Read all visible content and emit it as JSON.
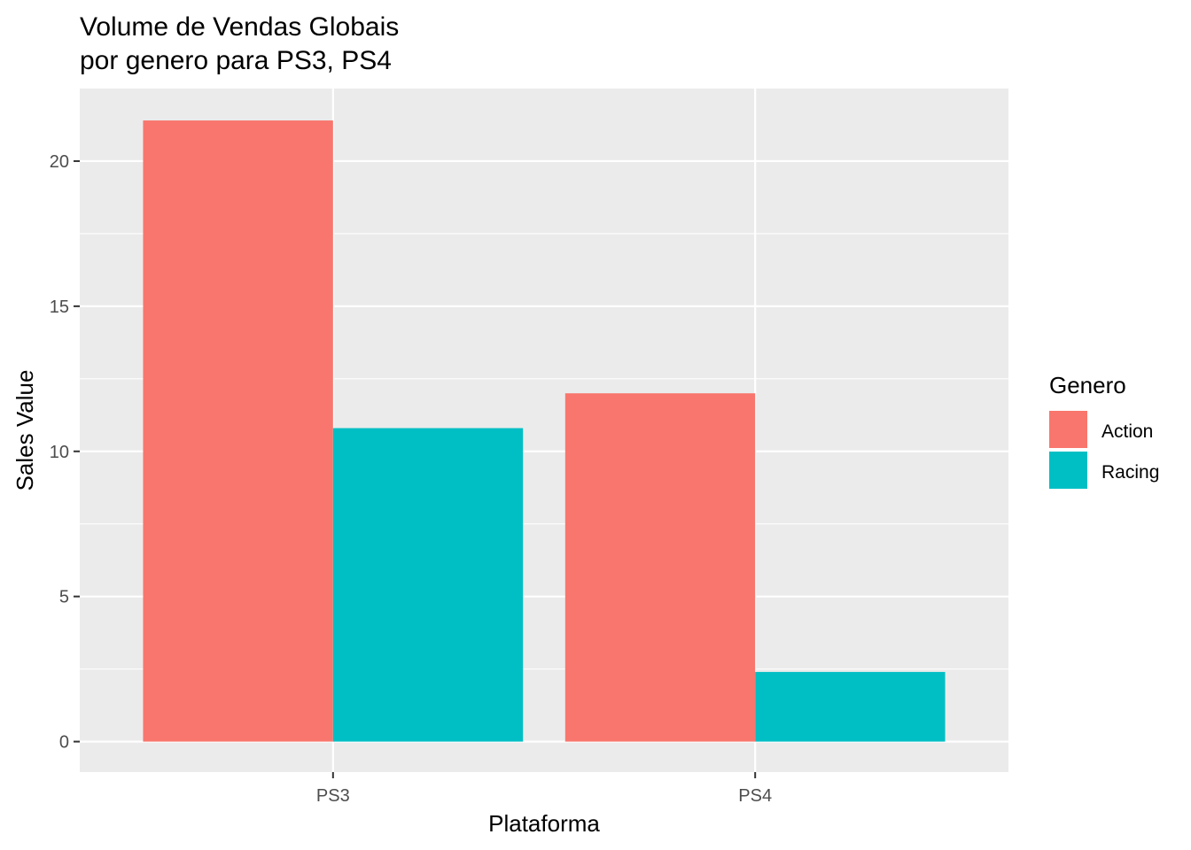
{
  "chart_data": {
    "type": "bar",
    "title_lines": [
      "Volume de Vendas Globais",
      "por genero para PS3, PS4"
    ],
    "xlabel": "Plataforma",
    "ylabel": "Sales Value",
    "categories": [
      "PS3",
      "PS4"
    ],
    "series": [
      {
        "name": "Action",
        "values": [
          21.4,
          12.0
        ],
        "color": "#F8766D"
      },
      {
        "name": "Racing",
        "values": [
          10.8,
          2.4
        ],
        "color": "#00BFC4"
      }
    ],
    "ylim": [
      -1.05,
      22.5
    ],
    "yticks": [
      0,
      5,
      10,
      15,
      20
    ],
    "y_minor_ticks": [
      2.5,
      7.5,
      12.5,
      17.5
    ],
    "legend": {
      "title": "Genero",
      "placement": "right"
    },
    "grid": true,
    "panel_background": "#EBEBEB",
    "grid_color": "#FFFFFF"
  }
}
